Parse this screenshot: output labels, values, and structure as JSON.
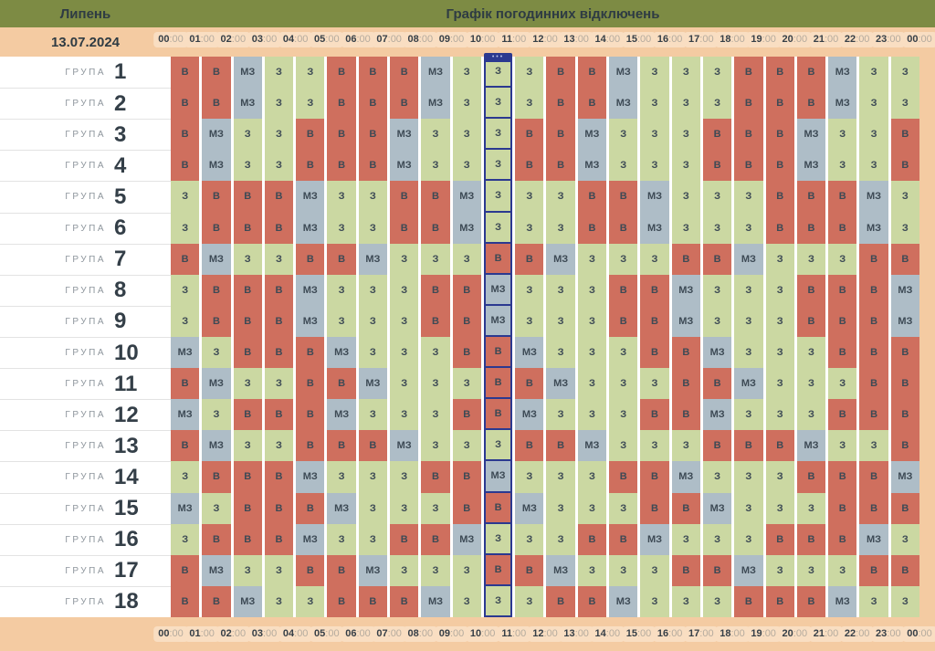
{
  "header": {
    "month": "Липень",
    "title": "Графік погодинних відключень",
    "date": "13.07.2024"
  },
  "groups": {
    "label": "ГРУПА"
  },
  "time_axis": {
    "hours": [
      "00",
      "01",
      "02",
      "03",
      "04",
      "05",
      "06",
      "07",
      "08",
      "09",
      "10",
      "11",
      "12",
      "13",
      "14",
      "15",
      "16",
      "17",
      "18",
      "19",
      "20",
      "21",
      "22",
      "23",
      "00"
    ],
    "minutes": ":00"
  },
  "current_hour": {
    "column_index": 10,
    "marker_dots": "•••"
  },
  "colors": {
    "header_bg": "#7d8b44",
    "header_text": "#2e3b43",
    "bar_bg": "#f4cba2",
    "pill_bg": "#f9dec2",
    "hour_text": "#363f47",
    "minute_text": "#b5ab9e",
    "cell_text": "#3d4a55",
    "group_label": "#8d959c",
    "group_number": "#343f48",
    "row_divider": "#e3e3e3",
    "highlight": "#2b3990",
    "value_colors": {
      "В": "#cf6f5e",
      "МЗ": "#aebdc7",
      "З": "#cbd8a2"
    }
  },
  "chart_data": {
    "type": "table",
    "title": "Графік погодинних відключень",
    "date": "13.07.2024",
    "columns": [
      "00:00",
      "01:00",
      "02:00",
      "03:00",
      "04:00",
      "05:00",
      "06:00",
      "07:00",
      "08:00",
      "09:00",
      "10:00",
      "11:00",
      "12:00",
      "13:00",
      "14:00",
      "15:00",
      "16:00",
      "17:00",
      "18:00",
      "19:00",
      "20:00",
      "21:00",
      "22:00",
      "23:00"
    ],
    "rows": [
      {
        "group": 1,
        "values": [
          "В",
          "В",
          "МЗ",
          "З",
          "З",
          "В",
          "В",
          "В",
          "МЗ",
          "З",
          "З",
          "З",
          "В",
          "В",
          "МЗ",
          "З",
          "З",
          "З",
          "В",
          "В",
          "В",
          "МЗ",
          "З",
          "З"
        ]
      },
      {
        "group": 2,
        "values": [
          "В",
          "В",
          "МЗ",
          "З",
          "З",
          "В",
          "В",
          "В",
          "МЗ",
          "З",
          "З",
          "З",
          "В",
          "В",
          "МЗ",
          "З",
          "З",
          "З",
          "В",
          "В",
          "В",
          "МЗ",
          "З",
          "З"
        ]
      },
      {
        "group": 3,
        "values": [
          "В",
          "МЗ",
          "З",
          "З",
          "В",
          "В",
          "В",
          "МЗ",
          "З",
          "З",
          "З",
          "В",
          "В",
          "МЗ",
          "З",
          "З",
          "З",
          "В",
          "В",
          "В",
          "МЗ",
          "З",
          "З",
          "В"
        ]
      },
      {
        "group": 4,
        "values": [
          "В",
          "МЗ",
          "З",
          "З",
          "В",
          "В",
          "В",
          "МЗ",
          "З",
          "З",
          "З",
          "В",
          "В",
          "МЗ",
          "З",
          "З",
          "З",
          "В",
          "В",
          "В",
          "МЗ",
          "З",
          "З",
          "В"
        ]
      },
      {
        "group": 5,
        "values": [
          "З",
          "В",
          "В",
          "В",
          "МЗ",
          "З",
          "З",
          "В",
          "В",
          "МЗ",
          "З",
          "З",
          "З",
          "В",
          "В",
          "МЗ",
          "З",
          "З",
          "З",
          "В",
          "В",
          "В",
          "МЗ",
          "З"
        ]
      },
      {
        "group": 6,
        "values": [
          "З",
          "В",
          "В",
          "В",
          "МЗ",
          "З",
          "З",
          "В",
          "В",
          "МЗ",
          "З",
          "З",
          "З",
          "В",
          "В",
          "МЗ",
          "З",
          "З",
          "З",
          "В",
          "В",
          "В",
          "МЗ",
          "З"
        ]
      },
      {
        "group": 7,
        "values": [
          "В",
          "МЗ",
          "З",
          "З",
          "В",
          "В",
          "МЗ",
          "З",
          "З",
          "З",
          "В",
          "В",
          "МЗ",
          "З",
          "З",
          "З",
          "В",
          "В",
          "МЗ",
          "З",
          "З",
          "З",
          "В",
          "В"
        ]
      },
      {
        "group": 8,
        "values": [
          "З",
          "В",
          "В",
          "В",
          "МЗ",
          "З",
          "З",
          "З",
          "В",
          "В",
          "МЗ",
          "З",
          "З",
          "З",
          "В",
          "В",
          "МЗ",
          "З",
          "З",
          "З",
          "В",
          "В",
          "В",
          "МЗ"
        ]
      },
      {
        "group": 9,
        "values": [
          "З",
          "В",
          "В",
          "В",
          "МЗ",
          "З",
          "З",
          "З",
          "В",
          "В",
          "МЗ",
          "З",
          "З",
          "З",
          "В",
          "В",
          "МЗ",
          "З",
          "З",
          "З",
          "В",
          "В",
          "В",
          "МЗ"
        ]
      },
      {
        "group": 10,
        "values": [
          "МЗ",
          "З",
          "В",
          "В",
          "В",
          "МЗ",
          "З",
          "З",
          "З",
          "В",
          "В",
          "МЗ",
          "З",
          "З",
          "З",
          "В",
          "В",
          "МЗ",
          "З",
          "З",
          "З",
          "В",
          "В",
          "В"
        ]
      },
      {
        "group": 11,
        "values": [
          "В",
          "МЗ",
          "З",
          "З",
          "В",
          "В",
          "МЗ",
          "З",
          "З",
          "З",
          "В",
          "В",
          "МЗ",
          "З",
          "З",
          "З",
          "В",
          "В",
          "МЗ",
          "З",
          "З",
          "З",
          "В",
          "В"
        ]
      },
      {
        "group": 12,
        "values": [
          "МЗ",
          "З",
          "В",
          "В",
          "В",
          "МЗ",
          "З",
          "З",
          "З",
          "В",
          "В",
          "МЗ",
          "З",
          "З",
          "З",
          "В",
          "В",
          "МЗ",
          "З",
          "З",
          "З",
          "В",
          "В",
          "В"
        ]
      },
      {
        "group": 13,
        "values": [
          "В",
          "МЗ",
          "З",
          "З",
          "В",
          "В",
          "В",
          "МЗ",
          "З",
          "З",
          "З",
          "В",
          "В",
          "МЗ",
          "З",
          "З",
          "З",
          "В",
          "В",
          "В",
          "МЗ",
          "З",
          "З",
          "В"
        ]
      },
      {
        "group": 14,
        "values": [
          "З",
          "В",
          "В",
          "В",
          "МЗ",
          "З",
          "З",
          "З",
          "В",
          "В",
          "МЗ",
          "З",
          "З",
          "З",
          "В",
          "В",
          "МЗ",
          "З",
          "З",
          "З",
          "В",
          "В",
          "В",
          "МЗ"
        ]
      },
      {
        "group": 15,
        "values": [
          "МЗ",
          "З",
          "В",
          "В",
          "В",
          "МЗ",
          "З",
          "З",
          "З",
          "В",
          "В",
          "МЗ",
          "З",
          "З",
          "З",
          "В",
          "В",
          "МЗ",
          "З",
          "З",
          "З",
          "В",
          "В",
          "В"
        ]
      },
      {
        "group": 16,
        "values": [
          "З",
          "В",
          "В",
          "В",
          "МЗ",
          "З",
          "З",
          "В",
          "В",
          "МЗ",
          "З",
          "З",
          "З",
          "В",
          "В",
          "МЗ",
          "З",
          "З",
          "З",
          "В",
          "В",
          "В",
          "МЗ",
          "З"
        ]
      },
      {
        "group": 17,
        "values": [
          "В",
          "МЗ",
          "З",
          "З",
          "В",
          "В",
          "МЗ",
          "З",
          "З",
          "З",
          "В",
          "В",
          "МЗ",
          "З",
          "З",
          "З",
          "В",
          "В",
          "МЗ",
          "З",
          "З",
          "З",
          "В",
          "В"
        ]
      },
      {
        "group": 18,
        "values": [
          "В",
          "В",
          "МЗ",
          "З",
          "З",
          "В",
          "В",
          "В",
          "МЗ",
          "З",
          "З",
          "З",
          "В",
          "В",
          "МЗ",
          "З",
          "З",
          "З",
          "В",
          "В",
          "В",
          "МЗ",
          "З",
          "З"
        ]
      }
    ]
  }
}
